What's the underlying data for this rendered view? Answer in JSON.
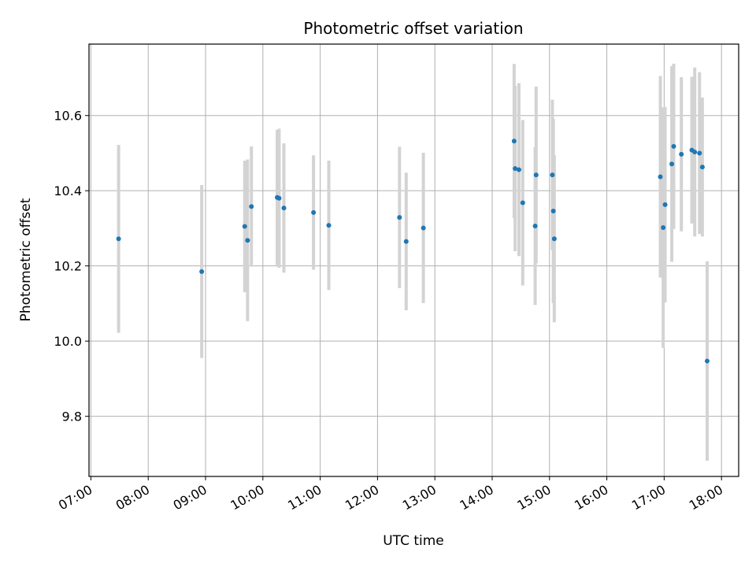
{
  "chart_data": {
    "type": "scatter",
    "title": "Photometric offset variation",
    "xlabel": "UTC time",
    "ylabel": "Photometric offset",
    "xlim": [
      "06:58",
      "18:18"
    ],
    "ylim": [
      9.64,
      10.79
    ],
    "grid": true,
    "x_tick_labels": [
      "07:00",
      "08:00",
      "09:00",
      "10:00",
      "11:00",
      "12:00",
      "13:00",
      "14:00",
      "15:00",
      "16:00",
      "17:00",
      "18:00"
    ],
    "y_tick_labels": [
      "9.8",
      "10.0",
      "10.2",
      "10.4",
      "10.6"
    ],
    "colors": {
      "point": "#1f77b4",
      "errorbar": "#d3d3d3",
      "grid": "#b0b0b0"
    },
    "series": [
      {
        "x": [
          "07:29",
          "08:56",
          "09:41",
          "09:44",
          "09:48",
          "10:15",
          "10:17",
          "10:22",
          "10:53",
          "11:09",
          "12:23",
          "12:30",
          "12:48",
          "14:23",
          "14:24",
          "14:28",
          "14:32",
          "14:45",
          "14:46",
          "15:03",
          "15:04",
          "15:05",
          "16:56",
          "16:59",
          "17:01",
          "17:08",
          "17:10",
          "17:18",
          "17:29",
          "17:32",
          "17:37",
          "17:40",
          "17:45"
        ],
        "y": [
          10.272,
          10.185,
          10.305,
          10.268,
          10.358,
          10.382,
          10.38,
          10.354,
          10.342,
          10.308,
          10.329,
          10.265,
          10.301,
          10.532,
          10.459,
          10.456,
          10.368,
          10.306,
          10.442,
          10.442,
          10.346,
          10.272,
          10.437,
          10.302,
          10.363,
          10.471,
          10.518,
          10.497,
          10.508,
          10.503,
          10.5,
          10.463,
          9.947
        ],
        "err": [
          0.25,
          0.23,
          0.175,
          0.215,
          0.16,
          0.18,
          0.185,
          0.172,
          0.152,
          0.172,
          0.188,
          0.183,
          0.2,
          0.205,
          0.22,
          0.23,
          0.22,
          0.21,
          0.235,
          0.2,
          0.245,
          0.222,
          0.268,
          0.32,
          0.26,
          0.26,
          0.22,
          0.205,
          0.195,
          0.225,
          0.215,
          0.185,
          0.265
        ]
      }
    ]
  }
}
